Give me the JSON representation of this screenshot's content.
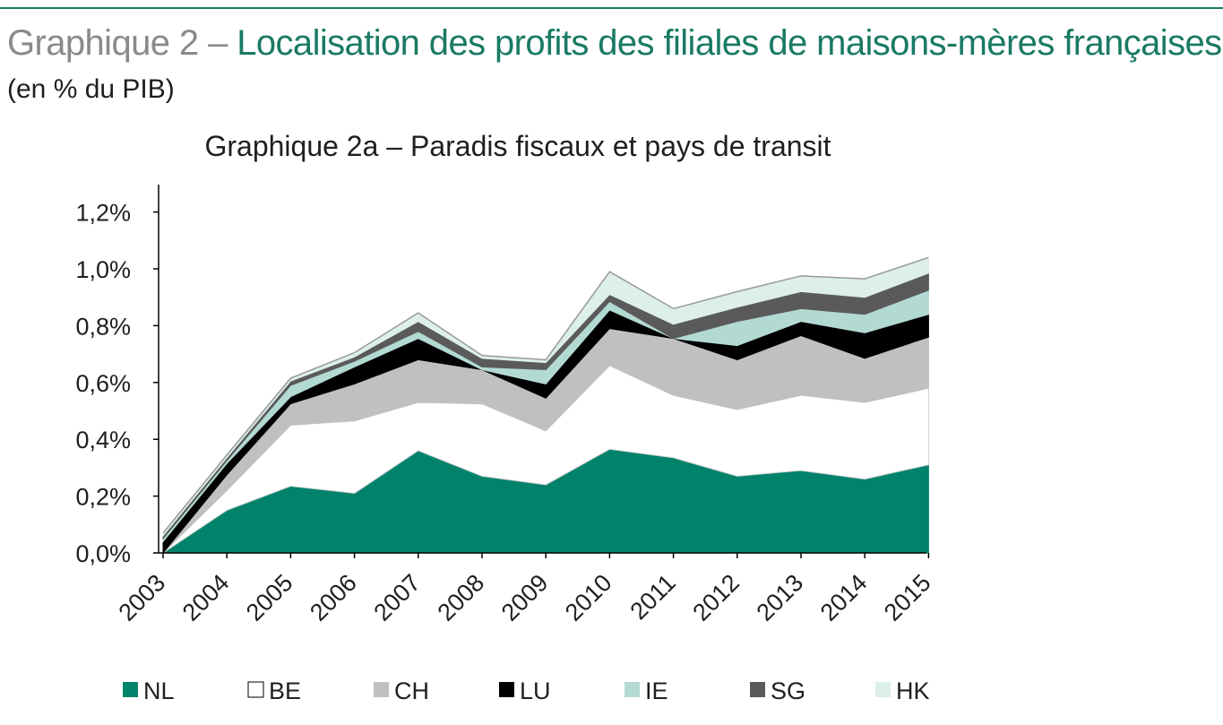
{
  "page": {
    "title_prefix": "Graphique 2 – ",
    "title_main": "Localisation des profits des filiales de maisons-mères françaises",
    "subtitle": "(en % du PIB)"
  },
  "chart_data": {
    "type": "area",
    "stacked": true,
    "title": "Graphique 2a – Paradis fiscaux et pays de transit",
    "x": [
      "2003",
      "2004",
      "2005",
      "2006",
      "2007",
      "2008",
      "2009",
      "2010",
      "2011",
      "2012",
      "2013",
      "2014",
      "2015"
    ],
    "y_unit": "%",
    "ylim": [
      0.0,
      1.3
    ],
    "y_ticks": [
      0.0,
      0.2,
      0.4,
      0.6,
      0.8,
      1.0,
      1.2
    ],
    "y_tick_labels": [
      "0,0%",
      "0,2%",
      "0,4%",
      "0,6%",
      "0,8%",
      "1,0%",
      "1,2%"
    ],
    "grid": false,
    "legend_position": "bottom",
    "series": [
      {
        "name": "NL",
        "color": "#00826b",
        "values": [
          0.0,
          0.15,
          0.235,
          0.21,
          0.36,
          0.27,
          0.24,
          0.365,
          0.335,
          0.27,
          0.29,
          0.26,
          0.31
        ]
      },
      {
        "name": "BE",
        "color": "#ffffff",
        "values": [
          0.0,
          0.07,
          0.215,
          0.255,
          0.17,
          0.255,
          0.19,
          0.295,
          0.22,
          0.235,
          0.265,
          0.27,
          0.27
        ]
      },
      {
        "name": "CH",
        "color": "#c0c0c0",
        "values": [
          0.0,
          0.055,
          0.075,
          0.13,
          0.15,
          0.12,
          0.115,
          0.13,
          0.2,
          0.175,
          0.21,
          0.155,
          0.18
        ]
      },
      {
        "name": "LU",
        "color": "#000000",
        "values": [
          0.04,
          0.04,
          0.025,
          0.06,
          0.075,
          0.0,
          0.05,
          0.065,
          0.0,
          0.05,
          0.05,
          0.09,
          0.08
        ]
      },
      {
        "name": "IE",
        "color": "#b3d9d3",
        "values": [
          0.01,
          0.01,
          0.04,
          0.02,
          0.025,
          0.01,
          0.05,
          0.03,
          0.0,
          0.085,
          0.045,
          0.065,
          0.085
        ]
      },
      {
        "name": "SG",
        "color": "#5a5a5a",
        "values": [
          0.01,
          0.01,
          0.015,
          0.015,
          0.035,
          0.03,
          0.025,
          0.025,
          0.05,
          0.05,
          0.06,
          0.06,
          0.06
        ]
      },
      {
        "name": "HK",
        "color": "#dcefea",
        "values": [
          0.01,
          0.01,
          0.01,
          0.015,
          0.03,
          0.01,
          0.01,
          0.08,
          0.055,
          0.055,
          0.055,
          0.065,
          0.055
        ]
      }
    ]
  }
}
